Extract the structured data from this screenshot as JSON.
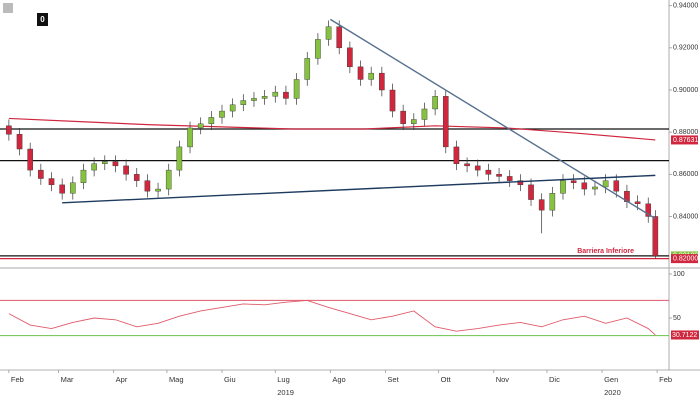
{
  "chart_data": {
    "type": "candlestick",
    "badge": "0",
    "x": [
      0,
      6,
      12,
      18,
      24,
      30,
      36,
      42,
      48,
      54,
      60,
      66,
      72,
      78,
      84,
      90,
      96,
      102,
      108,
      114,
      120,
      126,
      132,
      138,
      144,
      150,
      156,
      162,
      168,
      174,
      180,
      186,
      192,
      198,
      204,
      210,
      216,
      222,
      228,
      234,
      240,
      246,
      252,
      258,
      264,
      270,
      276,
      282,
      288,
      294,
      300,
      306,
      312,
      318,
      324,
      330,
      336,
      342,
      348,
      354,
      360,
      364
    ],
    "open": [
      0.883,
      0.879,
      0.872,
      0.862,
      0.858,
      0.855,
      0.851,
      0.856,
      0.862,
      0.865,
      0.866,
      0.864,
      0.86,
      0.857,
      0.852,
      0.853,
      0.862,
      0.873,
      0.882,
      0.884,
      0.887,
      0.89,
      0.893,
      0.895,
      0.896,
      0.897,
      0.899,
      0.896,
      0.905,
      0.915,
      0.924,
      0.93,
      0.92,
      0.911,
      0.905,
      0.908,
      0.9,
      0.89,
      0.884,
      0.886,
      0.891,
      0.897,
      0.873,
      0.865,
      0.864,
      0.862,
      0.86,
      0.859,
      0.857,
      0.855,
      0.848,
      0.843,
      0.851,
      0.857,
      0.856,
      0.853,
      0.854,
      0.857,
      0.852,
      0.847,
      0.846,
      0.84
    ],
    "high": [
      0.886,
      0.882,
      0.875,
      0.865,
      0.861,
      0.858,
      0.859,
      0.865,
      0.868,
      0.869,
      0.869,
      0.867,
      0.863,
      0.86,
      0.856,
      0.865,
      0.876,
      0.885,
      0.887,
      0.89,
      0.893,
      0.896,
      0.898,
      0.899,
      0.9,
      0.902,
      0.902,
      0.908,
      0.918,
      0.927,
      0.933,
      0.933,
      0.923,
      0.914,
      0.911,
      0.911,
      0.903,
      0.893,
      0.889,
      0.894,
      0.9,
      0.9,
      0.876,
      0.868,
      0.867,
      0.865,
      0.863,
      0.862,
      0.86,
      0.858,
      0.851,
      0.854,
      0.86,
      0.86,
      0.859,
      0.857,
      0.86,
      0.86,
      0.855,
      0.85,
      0.849,
      0.843
    ],
    "low": [
      0.876,
      0.869,
      0.859,
      0.855,
      0.852,
      0.848,
      0.848,
      0.853,
      0.859,
      0.862,
      0.861,
      0.857,
      0.854,
      0.849,
      0.849,
      0.85,
      0.859,
      0.87,
      0.879,
      0.881,
      0.884,
      0.887,
      0.89,
      0.892,
      0.893,
      0.894,
      0.893,
      0.893,
      0.902,
      0.912,
      0.921,
      0.917,
      0.908,
      0.902,
      0.902,
      0.897,
      0.887,
      0.881,
      0.881,
      0.883,
      0.888,
      0.87,
      0.862,
      0.861,
      0.859,
      0.857,
      0.856,
      0.854,
      0.852,
      0.845,
      0.832,
      0.84,
      0.848,
      0.853,
      0.85,
      0.85,
      0.851,
      0.849,
      0.844,
      0.843,
      0.837,
      0.82
    ],
    "close": [
      0.879,
      0.872,
      0.862,
      0.858,
      0.855,
      0.851,
      0.856,
      0.862,
      0.865,
      0.866,
      0.864,
      0.86,
      0.857,
      0.852,
      0.853,
      0.862,
      0.873,
      0.882,
      0.884,
      0.887,
      0.89,
      0.893,
      0.895,
      0.896,
      0.897,
      0.899,
      0.896,
      0.905,
      0.915,
      0.924,
      0.93,
      0.92,
      0.911,
      0.905,
      0.908,
      0.9,
      0.89,
      0.884,
      0.886,
      0.891,
      0.897,
      0.873,
      0.865,
      0.864,
      0.862,
      0.86,
      0.859,
      0.857,
      0.855,
      0.848,
      0.843,
      0.851,
      0.857,
      0.856,
      0.853,
      0.854,
      0.857,
      0.852,
      0.847,
      0.846,
      0.84,
      0.8213
    ],
    "up_color": "#86c23f",
    "down_color": "#d0273e",
    "xlim": [
      -5,
      370
    ],
    "xticks": [
      {
        "value": 0,
        "label": "Feb"
      },
      {
        "value": 28,
        "label": "Mar"
      },
      {
        "value": 59,
        "label": "Apr"
      },
      {
        "value": 89,
        "label": "Mag"
      },
      {
        "value": 120,
        "label": "Giu"
      },
      {
        "value": 150,
        "label": "Lug"
      },
      {
        "value": 181,
        "label": "Ago"
      },
      {
        "value": 212,
        "label": "Set"
      },
      {
        "value": 242,
        "label": "Ott"
      },
      {
        "value": 273,
        "label": "Nov"
      },
      {
        "value": 303,
        "label": "Dic"
      },
      {
        "value": 334,
        "label": "Gen"
      },
      {
        "value": 365,
        "label": "Feb"
      }
    ],
    "year_labels": [
      {
        "value": 150,
        "label": "2019"
      },
      {
        "value": 334,
        "label": "2020"
      }
    ],
    "ylim": [
      0.8165,
      0.9427
    ],
    "yticks": [
      {
        "value": 0.94,
        "label": "0.94000"
      },
      {
        "value": 0.92,
        "label": "0.92000"
      },
      {
        "value": 0.9,
        "label": "0.90000"
      },
      {
        "value": 0.88,
        "label": "0.88000"
      },
      {
        "value": 0.86,
        "label": "0.86000"
      },
      {
        "value": 0.84,
        "label": "0.84000"
      }
    ],
    "tags": [
      {
        "value": 0.87631,
        "label": "0.87631",
        "color": "#d0273e"
      },
      {
        "value": 0.82129,
        "label": "0.82129",
        "color": "#86c23f"
      },
      {
        "value": 0.82,
        "label": "0.82000",
        "color": "#d0273e"
      }
    ],
    "moving_average": {
      "color": "#d0273e",
      "x": [
        0,
        40,
        80,
        120,
        160,
        200,
        240,
        280,
        320,
        364
      ],
      "values": [
        0.8865,
        0.885,
        0.8835,
        0.8825,
        0.8815,
        0.8815,
        0.883,
        0.882,
        0.8795,
        0.8763
      ]
    },
    "levels": [
      {
        "value": 0.8815,
        "color": "#111111"
      },
      {
        "value": 0.8665,
        "color": "#111111"
      },
      {
        "value": 0.8213,
        "color": "#111111"
      },
      {
        "value": 0.82,
        "color": "#d0273e"
      }
    ],
    "trendlines": [
      {
        "x": [
          181,
          364
        ],
        "values": [
          0.9335,
          0.839
        ],
        "color": "#56708f"
      },
      {
        "x": [
          30,
          364
        ],
        "values": [
          0.8465,
          0.8595
        ],
        "color": "#1f3a5f"
      }
    ],
    "annotation": {
      "text": "Barriera Inferiore",
      "x": 320,
      "y": 0.8235
    },
    "rsi": {
      "color": "#e05a6a",
      "x": [
        0,
        12,
        24,
        36,
        48,
        60,
        72,
        84,
        96,
        108,
        120,
        132,
        144,
        156,
        168,
        180,
        192,
        204,
        216,
        228,
        240,
        252,
        264,
        276,
        288,
        300,
        312,
        324,
        336,
        348,
        360,
        364
      ],
      "values": [
        55,
        42,
        38,
        45,
        50,
        48,
        40,
        44,
        52,
        58,
        62,
        66,
        65,
        68,
        70,
        62,
        55,
        48,
        52,
        58,
        40,
        35,
        38,
        42,
        45,
        40,
        48,
        52,
        44,
        50,
        38,
        30.7122
      ],
      "ylim": [
        0,
        100
      ],
      "yticks": [
        100,
        50
      ],
      "tag": {
        "value": 30.7122,
        "label": "30.7122",
        "color": "#d0273e"
      },
      "bands": [
        {
          "value": 70,
          "color": "#e05a6a"
        },
        {
          "value": 30,
          "color": "#6cc24a"
        }
      ]
    }
  }
}
